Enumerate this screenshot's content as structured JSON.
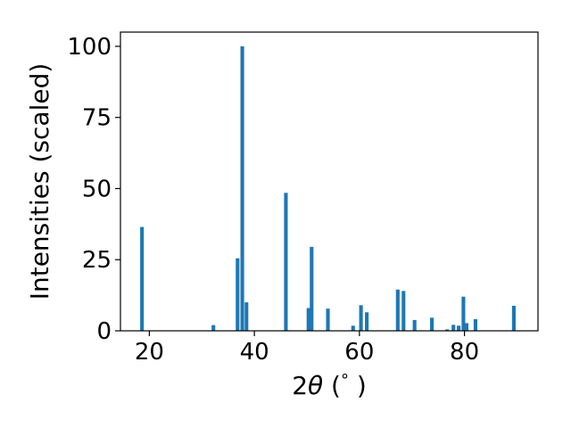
{
  "chart_data": {
    "type": "bar",
    "xlabel": "2θ (°)",
    "xlabel_parts": {
      "prefix": "2",
      "symbol": "θ",
      "suffix_open": " (",
      "degree": "°",
      "suffix_close": " )"
    },
    "ylabel": "Intensities (scaled)",
    "xlim": [
      14.5,
      94.0
    ],
    "ylim": [
      0,
      105
    ],
    "bar_width": 0.7,
    "grid": false,
    "color": "#1f77b4",
    "xticks": [
      {
        "value": 20,
        "label": "20"
      },
      {
        "value": 40,
        "label": "40"
      },
      {
        "value": 60,
        "label": "60"
      },
      {
        "value": 80,
        "label": "80"
      }
    ],
    "yticks": [
      {
        "value": 0,
        "label": "0"
      },
      {
        "value": 25,
        "label": "25"
      },
      {
        "value": 50,
        "label": "50"
      },
      {
        "value": 75,
        "label": "75"
      },
      {
        "value": 100,
        "label": "100"
      }
    ],
    "points": [
      {
        "x": 18.6,
        "y": 36.5
      },
      {
        "x": 32.2,
        "y": 2.0
      },
      {
        "x": 36.8,
        "y": 25.5
      },
      {
        "x": 37.7,
        "y": 100.0
      },
      {
        "x": 38.5,
        "y": 10.0
      },
      {
        "x": 46.0,
        "y": 48.5
      },
      {
        "x": 50.3,
        "y": 8.0
      },
      {
        "x": 50.9,
        "y": 29.5
      },
      {
        "x": 54.0,
        "y": 7.8
      },
      {
        "x": 58.8,
        "y": 1.8
      },
      {
        "x": 60.3,
        "y": 9.0
      },
      {
        "x": 61.4,
        "y": 6.5
      },
      {
        "x": 67.3,
        "y": 14.5
      },
      {
        "x": 68.4,
        "y": 14.0
      },
      {
        "x": 70.5,
        "y": 3.8
      },
      {
        "x": 73.8,
        "y": 4.6
      },
      {
        "x": 76.7,
        "y": 0.5
      },
      {
        "x": 77.9,
        "y": 2.1
      },
      {
        "x": 78.9,
        "y": 1.8
      },
      {
        "x": 79.8,
        "y": 12.0
      },
      {
        "x": 80.4,
        "y": 2.7
      },
      {
        "x": 82.1,
        "y": 4.1
      },
      {
        "x": 89.4,
        "y": 8.8
      }
    ]
  }
}
